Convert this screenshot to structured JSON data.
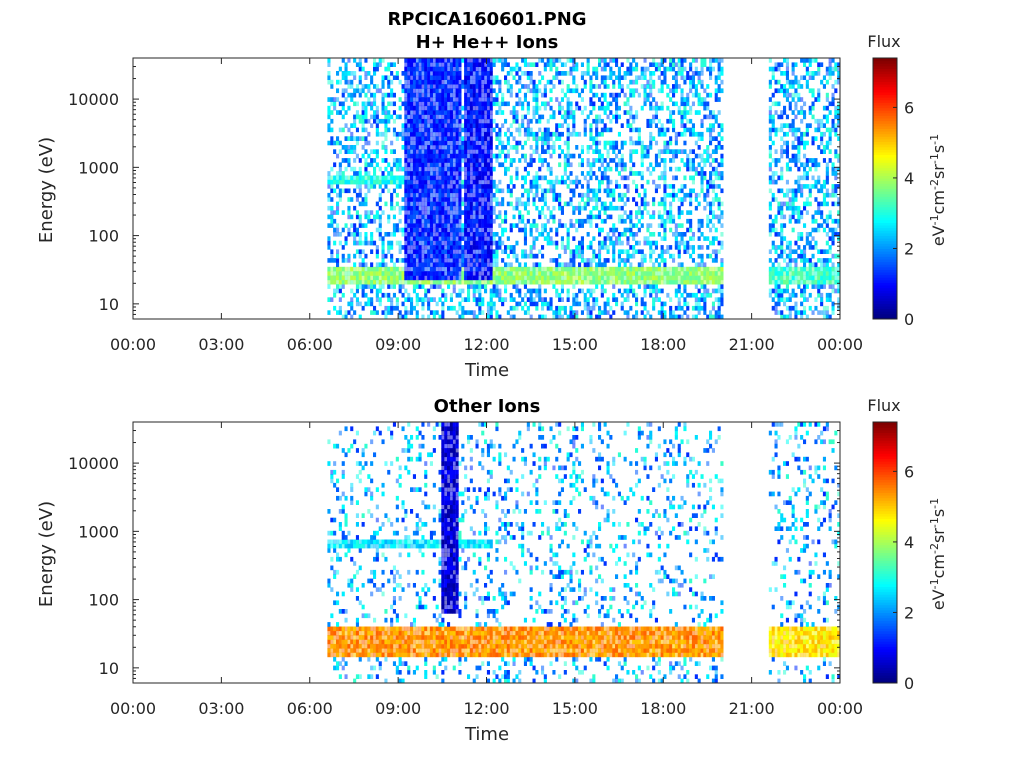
{
  "figure": {
    "title": "RPCICA160601.PNG"
  },
  "chart_data": [
    {
      "type": "heatmap",
      "title": "H+ He++ Ions",
      "xlabel": "Time",
      "ylabel": "Energy (eV)",
      "x_tick_labels": [
        "00:00",
        "03:00",
        "06:00",
        "09:00",
        "12:00",
        "15:00",
        "18:00",
        "21:00",
        "00:00"
      ],
      "x_ticks_hours": [
        0,
        3,
        6,
        9,
        12,
        15,
        18,
        21,
        24
      ],
      "xlim_hours": [
        0,
        24
      ],
      "y_scale": "log",
      "y_tick_labels": [
        "10",
        "100",
        "1000",
        "10000"
      ],
      "y_ticks": [
        10,
        100,
        1000,
        10000
      ],
      "ylim": [
        6,
        40000
      ],
      "colorbar": {
        "label": "Flux",
        "unit_label": "eV-1cm-2sr-1s-1",
        "ticks": [
          0,
          2,
          4,
          6
        ],
        "tick_labels": [
          "0",
          "2",
          "4",
          "6"
        ],
        "range": [
          0,
          7.4
        ]
      },
      "data_gaps_hours": [
        [
          0,
          6.6
        ],
        [
          20,
          21.5
        ]
      ],
      "bands": [
        {
          "t_start": 6.6,
          "t_end": 20,
          "e_low": 18,
          "e_high": 32,
          "flux": 3.8
        },
        {
          "t_start": 21.5,
          "t_end": 24,
          "e_low": 18,
          "e_high": 32,
          "flux": 3.2
        },
        {
          "t_start": 6.6,
          "t_end": 9.5,
          "e_low": 500,
          "e_high": 700,
          "flux": 3.0
        },
        {
          "t_start": 9.2,
          "t_end": 11.1,
          "e_low": 20,
          "e_high": 40000,
          "flux": 1.2
        },
        {
          "t_start": 11.2,
          "t_end": 12.2,
          "e_low": 20,
          "e_high": 40000,
          "flux": 1.0
        }
      ]
    },
    {
      "type": "heatmap",
      "title": "Other Ions",
      "xlabel": "Time",
      "ylabel": "Energy (eV)",
      "x_tick_labels": [
        "00:00",
        "03:00",
        "06:00",
        "09:00",
        "12:00",
        "15:00",
        "18:00",
        "21:00",
        "00:00"
      ],
      "x_ticks_hours": [
        0,
        3,
        6,
        9,
        12,
        15,
        18,
        21,
        24
      ],
      "xlim_hours": [
        0,
        24
      ],
      "y_scale": "log",
      "y_tick_labels": [
        "10",
        "100",
        "1000",
        "10000"
      ],
      "y_ticks": [
        10,
        100,
        1000,
        10000
      ],
      "ylim": [
        6,
        40000
      ],
      "colorbar": {
        "label": "Flux",
        "unit_label": "eV-1cm-2sr-1s-1",
        "ticks": [
          0,
          2,
          4,
          6
        ],
        "tick_labels": [
          "0",
          "2",
          "4",
          "6"
        ],
        "range": [
          0,
          7.4
        ]
      },
      "data_gaps_hours": [
        [
          0,
          6.6
        ],
        [
          20,
          21.5
        ]
      ],
      "bands": [
        {
          "t_start": 6.6,
          "t_end": 20,
          "e_low": 14,
          "e_high": 35,
          "flux": 5.4
        },
        {
          "t_start": 21.5,
          "t_end": 24,
          "e_low": 14,
          "e_high": 35,
          "flux": 4.8
        },
        {
          "t_start": 6.6,
          "t_end": 12.2,
          "e_low": 550,
          "e_high": 750,
          "flux": 2.6
        },
        {
          "t_start": 10.4,
          "t_end": 11.0,
          "e_low": 60,
          "e_high": 40000,
          "flux": 0.6
        }
      ]
    }
  ]
}
